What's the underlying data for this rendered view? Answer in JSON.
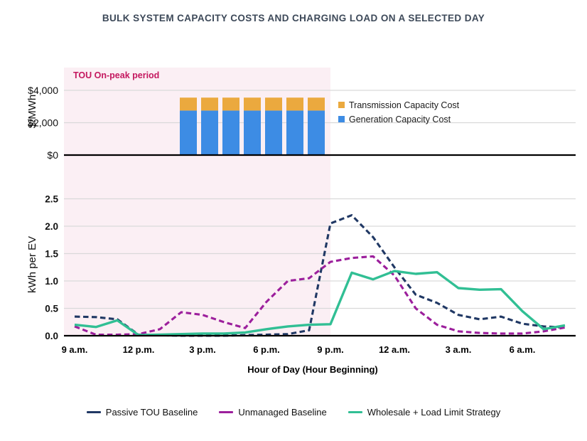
{
  "title": "BULK SYSTEM CAPACITY COSTS AND CHARGING LOAD ON A SELECTED DAY",
  "chart_data": [
    {
      "id": "capacity_costs",
      "type": "bar",
      "stacked": true,
      "categories": [
        "3 p.m.",
        "4 p.m.",
        "5 p.m.",
        "6 p.m.",
        "7 p.m.",
        "8 p.m.",
        "9 p.m."
      ],
      "series": [
        {
          "name": "Transmission Capacity Cost",
          "color": "#eba93e",
          "values": [
            800,
            800,
            800,
            800,
            800,
            800,
            800
          ]
        },
        {
          "name": "Generation Capacity Cost",
          "color": "#3d8ce4",
          "values": [
            2750,
            2750,
            2750,
            2750,
            2750,
            2750,
            2750
          ]
        }
      ],
      "ylabel": "$/MWh",
      "yticks": [
        {
          "value": 0,
          "label": "$0"
        },
        {
          "value": 2000,
          "label": "$2,000"
        },
        {
          "value": 4000,
          "label": "$4,000"
        }
      ],
      "ylim": [
        0,
        5400
      ],
      "grid": true,
      "legend_position": "right",
      "annotation": {
        "label": "TOU On-peak period",
        "text_color": "#c4185f",
        "fill_color": "#fbeff4",
        "span_from": "9 a.m.",
        "span_to": "9 p.m."
      }
    },
    {
      "id": "charging_load",
      "type": "line",
      "x": [
        "9 a.m.",
        "10 a.m.",
        "11 a.m.",
        "12 p.m.",
        "1 p.m.",
        "2 p.m.",
        "3 p.m.",
        "4 p.m.",
        "5 p.m.",
        "6 p.m.",
        "7 p.m.",
        "8 p.m.",
        "9 p.m.",
        "10 p.m.",
        "11 p.m.",
        "12 a.m.",
        "1 a.m.",
        "2 a.m.",
        "3 a.m.",
        "4 a.m.",
        "5 a.m.",
        "6 a.m.",
        "7 a.m.",
        "8 a.m."
      ],
      "xticks_shown": [
        "9 a.m.",
        "12 p.m.",
        "3 p.m.",
        "6 p.m.",
        "9 p.m.",
        "12 a.m.",
        "3 a.m.",
        "6 a.m."
      ],
      "series": [
        {
          "name": "Passive TOU Baseline",
          "color": "#203864",
          "style": "dashed",
          "values": [
            0.35,
            0.34,
            0.3,
            0.02,
            0.01,
            0,
            0,
            0,
            0.01,
            0.02,
            0.03,
            0.1,
            2.05,
            2.2,
            1.8,
            1.25,
            0.75,
            0.6,
            0.38,
            0.3,
            0.35,
            0.22,
            0.17,
            0.15
          ]
        },
        {
          "name": "Unmanaged Baseline",
          "color": "#9c1f9c",
          "style": "dashed",
          "values": [
            0.17,
            0.02,
            0.02,
            0.03,
            0.12,
            0.43,
            0.38,
            0.25,
            0.14,
            0.62,
            1.0,
            1.05,
            1.35,
            1.42,
            1.45,
            1.1,
            0.5,
            0.2,
            0.08,
            0.05,
            0.04,
            0.04,
            0.08,
            0.15
          ]
        },
        {
          "name": "Wholesale + Load Limit Strategy",
          "color": "#31bf94",
          "style": "solid",
          "values": [
            0.2,
            0.16,
            0.28,
            0.01,
            0.02,
            0.03,
            0.04,
            0.04,
            0.06,
            0.12,
            0.17,
            0.2,
            0.21,
            1.15,
            1.03,
            1.18,
            1.13,
            1.16,
            0.87,
            0.84,
            0.85,
            0.45,
            0.12,
            0.19
          ]
        }
      ],
      "xlabel": "Hour of Day (Hour Beginning)",
      "ylabel": "kWh per EV",
      "yticks": [
        "0.0",
        "0.5",
        "1.0",
        "1.5",
        "2.0",
        "2.5"
      ],
      "ylim": [
        0,
        3.05
      ],
      "grid": true,
      "legend_position": "bottom"
    }
  ]
}
